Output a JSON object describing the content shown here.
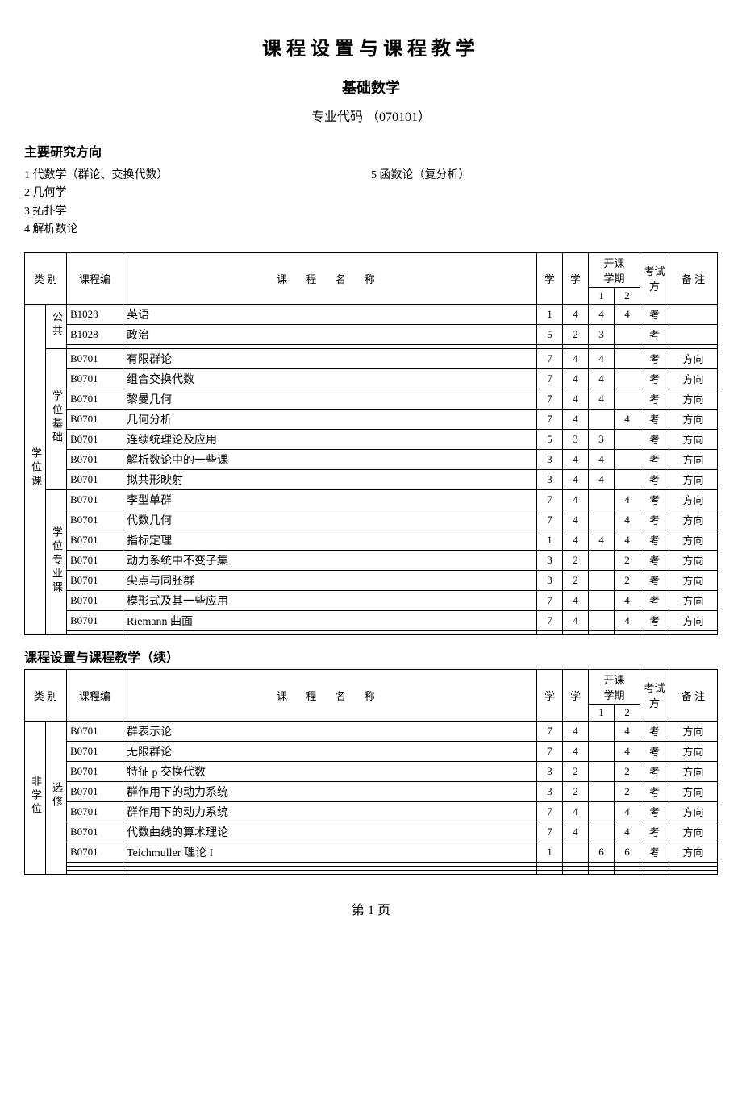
{
  "title": "课程设置与课程教学",
  "subtitle": "基础数学",
  "major_code_label": "专业代码",
  "major_code": "（070101）",
  "research_head": "主要研究方向",
  "directions_left": [
    "1  代数学（群论、交换代数）",
    "2  几何学",
    "3  拓扑学",
    "4  解析数论"
  ],
  "directions_right": [
    "5  函数论（复分析）"
  ],
  "headers": {
    "cat": "类 别",
    "code": "课程编",
    "name": "课  程  名  称",
    "credit": "学",
    "hours": "学",
    "semester_top": "开课",
    "semester_bottom": "学期",
    "sem1": "1",
    "sem2": "2",
    "exam_top": "考试",
    "exam_bottom": "方",
    "note": "备 注"
  },
  "cat1_main": "学位课",
  "cat2_groups": [
    "公共",
    "学位基础",
    "学位专业课"
  ],
  "rows_main": [
    {
      "code": "B1028",
      "name": "英语",
      "c": "1",
      "h": "4",
      "s1": "4",
      "s2": "4",
      "exam": "考",
      "note": ""
    },
    {
      "code": "B1028",
      "name": "政治",
      "c": "5",
      "h": "2",
      "s1": "3",
      "s2": "",
      "exam": "考",
      "note": ""
    },
    {
      "code": "",
      "name": "",
      "c": "",
      "h": "",
      "s1": "",
      "s2": "",
      "exam": "",
      "note": ""
    },
    {
      "code": "B0701",
      "name": "有限群论",
      "c": "7",
      "h": "4",
      "s1": "4",
      "s2": "",
      "exam": "考",
      "note": "方向"
    },
    {
      "code": "B0701",
      "name": "组合交换代数",
      "c": "7",
      "h": "4",
      "s1": "4",
      "s2": "",
      "exam": "考",
      "note": "方向"
    },
    {
      "code": "B0701",
      "name": "黎曼几何",
      "c": "7",
      "h": "4",
      "s1": "4",
      "s2": "",
      "exam": "考",
      "note": "方向"
    },
    {
      "code": "B0701",
      "name": "几何分析",
      "c": "7",
      "h": "4",
      "s1": "",
      "s2": "4",
      "exam": "考",
      "note": "方向"
    },
    {
      "code": "B0701",
      "name": "连续统理论及应用",
      "c": "5",
      "h": "3",
      "s1": "3",
      "s2": "",
      "exam": "考",
      "note": "方向"
    },
    {
      "code": "B0701",
      "name": "解析数论中的一些课",
      "c": "3",
      "h": "4",
      "s1": "4",
      "s2": "",
      "exam": "考",
      "note": "方向"
    },
    {
      "code": "B0701",
      "name": "拟共形映射",
      "c": "3",
      "h": "4",
      "s1": "4",
      "s2": "",
      "exam": "考",
      "note": "方向"
    },
    {
      "code": "B0701",
      "name": "李型单群",
      "c": "7",
      "h": "4",
      "s1": "",
      "s2": "4",
      "exam": "考",
      "note": "方向"
    },
    {
      "code": "B0701",
      "name": "代数几何",
      "c": "7",
      "h": "4",
      "s1": "",
      "s2": "4",
      "exam": "考",
      "note": "方向"
    },
    {
      "code": "B0701",
      "name": "指标定理",
      "c": "1",
      "h": "4",
      "s1": "4",
      "s2": "4",
      "exam": "考",
      "note": "方向"
    },
    {
      "code": "B0701",
      "name": "动力系统中不变子集",
      "c": "3",
      "h": "2",
      "s1": "",
      "s2": "2",
      "exam": "考",
      "note": "方向"
    },
    {
      "code": "B0701",
      "name": "尖点与同胚群",
      "c": "3",
      "h": "2",
      "s1": "",
      "s2": "2",
      "exam": "考",
      "note": "方向"
    },
    {
      "code": "B0701",
      "name": "模形式及其一些应用",
      "c": "7",
      "h": "4",
      "s1": "",
      "s2": "4",
      "exam": "考",
      "note": "方向"
    },
    {
      "code": "B0701",
      "name": "Riemann 曲面",
      "c": "7",
      "h": "4",
      "s1": "",
      "s2": "4",
      "exam": "考",
      "note": "方向"
    },
    {
      "code": "",
      "name": "",
      "c": "",
      "h": "",
      "s1": "",
      "s2": "",
      "exam": "",
      "note": ""
    }
  ],
  "cont_title": "课程设置与课程教学（续）",
  "cat1_cont": "非学位",
  "cat2_cont": "选修",
  "rows_cont": [
    {
      "code": "B0701",
      "name": "群表示论",
      "c": "7",
      "h": "4",
      "s1": "",
      "s2": "4",
      "exam": "考",
      "note": "方向"
    },
    {
      "code": "B0701",
      "name": "无限群论",
      "c": "7",
      "h": "4",
      "s1": "",
      "s2": "4",
      "exam": "考",
      "note": "方向"
    },
    {
      "code": "B0701",
      "name": "特征 p 交换代数",
      "c": "3",
      "h": "2",
      "s1": "",
      "s2": "2",
      "exam": "考",
      "note": "方向"
    },
    {
      "code": "B0701",
      "name": "群作用下的动力系统",
      "c": "3",
      "h": "2",
      "s1": "",
      "s2": "2",
      "exam": "考",
      "note": "方向"
    },
    {
      "code": "B0701",
      "name": "群作用下的动力系统",
      "c": "7",
      "h": "4",
      "s1": "",
      "s2": "4",
      "exam": "考",
      "note": "方向"
    },
    {
      "code": "B0701",
      "name": "代数曲线的算术理论",
      "c": "7",
      "h": "4",
      "s1": "",
      "s2": "4",
      "exam": "考",
      "note": "方向"
    },
    {
      "code": "B0701",
      "name": "Teichmuller 理论 I",
      "c": "1",
      "h": "",
      "s1": "6",
      "s2": "6",
      "exam": "考",
      "note": "方向"
    },
    {
      "code": "",
      "name": "",
      "c": "",
      "h": "",
      "s1": "",
      "s2": "",
      "exam": "",
      "note": ""
    },
    {
      "code": "",
      "name": "",
      "c": "",
      "h": "",
      "s1": "",
      "s2": "",
      "exam": "",
      "note": ""
    },
    {
      "code": "",
      "name": "",
      "c": "",
      "h": "",
      "s1": "",
      "s2": "",
      "exam": "",
      "note": ""
    }
  ],
  "page_number": "第 1 页"
}
